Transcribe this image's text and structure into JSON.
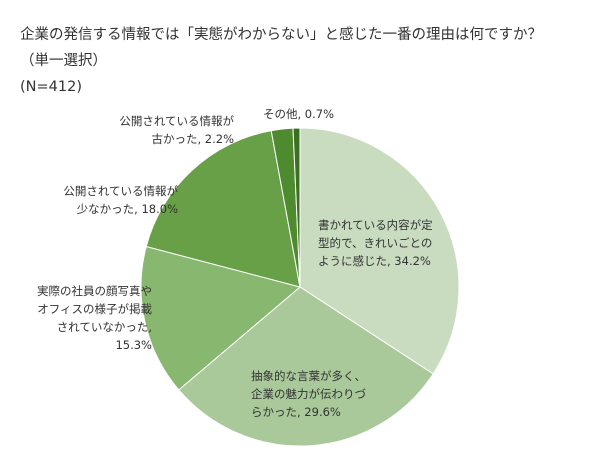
{
  "header": {
    "title_line1": "企業の発信する情報では「実態がわからない」と感じた一番の理由は何ですか？",
    "title_line2": "（単一選択）",
    "sample": "(N=412)"
  },
  "chart_data": {
    "type": "pie",
    "title": "企業の発信する情報では「実態がわからない」と感じた一番の理由は何ですか？（単一選択）",
    "sample": "(N=412)",
    "start_angle_deg": 0,
    "direction": "clockwise",
    "slices": [
      {
        "label": "書かれている内容が定型的で、きれいごとのように感じた",
        "value": 34.2,
        "display": [
          "書かれている内容が定",
          "型的で、きれいごとの",
          "ように感じた, 34.2%"
        ],
        "color": "#c9dcc0"
      },
      {
        "label": "抽象的な言葉が多く、企業の魅力が伝わりづらかった",
        "value": 29.6,
        "display": [
          "抽象的な言葉が多く、",
          "企業の魅力が伝わりづ",
          "らかった, 29.6%"
        ],
        "color": "#a9c99a"
      },
      {
        "label": "実際の社員の顔写真やオフィスの様子が掲載されていなかった",
        "value": 15.3,
        "display": [
          "実際の社員の顔写真や",
          "オフィスの様子が掲載",
          "されていなかった,",
          "15.3%"
        ],
        "color": "#88b76f"
      },
      {
        "label": "公開されている情報が少なかった",
        "value": 18.0,
        "display": [
          "公開されている情報が",
          "少なかった, 18.0%"
        ],
        "color": "#67a046"
      },
      {
        "label": "公開されている情報が古かった",
        "value": 2.2,
        "display": [
          "公開されている情報が",
          "古かった, 2.2%"
        ],
        "color": "#4e8a2e"
      },
      {
        "label": "その他",
        "value": 0.7,
        "display": [
          "その他, 0.7%"
        ],
        "color": "#3d6f22"
      }
    ]
  }
}
